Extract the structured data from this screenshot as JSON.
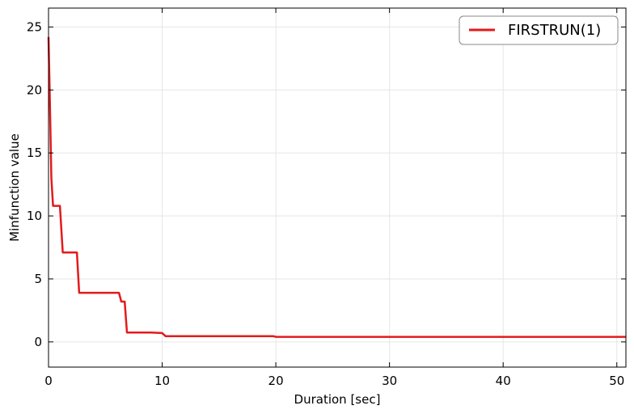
{
  "chart_data": {
    "type": "line",
    "title": "",
    "xlabel": "Duration [sec]",
    "ylabel": "Minfunction value",
    "xlim": [
      0,
      50.8
    ],
    "ylim": [
      -2,
      26.5
    ],
    "x_ticks": [
      0,
      10,
      20,
      30,
      40,
      50
    ],
    "y_ticks": [
      0,
      5,
      10,
      15,
      20,
      25
    ],
    "x_tick_labels": [
      "0",
      "10",
      "20",
      "30",
      "40",
      "50"
    ],
    "y_tick_labels": [
      "0",
      "5",
      "10",
      "15",
      "20",
      "25"
    ],
    "grid": true,
    "legend_position": "top-right",
    "series": [
      {
        "name": "FIRSTRUN(1)",
        "color": "#e31a1c",
        "x": [
          0,
          0.1,
          0.25,
          0.4,
          1.0,
          1.25,
          2.5,
          2.7,
          6.2,
          6.4,
          6.7,
          6.9,
          9.0,
          10.0,
          10.3,
          19.8,
          20.0,
          50.8
        ],
        "y": [
          24.2,
          20.0,
          13.0,
          10.8,
          10.8,
          7.1,
          7.1,
          3.9,
          3.9,
          3.2,
          3.2,
          0.75,
          0.75,
          0.7,
          0.45,
          0.45,
          0.4,
          0.4
        ]
      }
    ]
  }
}
